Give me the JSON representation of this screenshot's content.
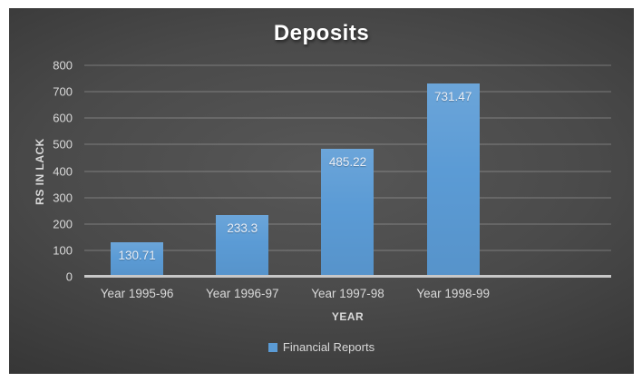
{
  "chart_data": {
    "type": "bar",
    "title": "Deposits",
    "categories": [
      "Year 1995-96",
      "Year 1996-97",
      "Year 1997-98",
      "Year 1998-99"
    ],
    "values": [
      130.71,
      233.3,
      485.22,
      731.47
    ],
    "value_labels": [
      "130.71",
      "233.3",
      "485.22",
      "731.47"
    ],
    "series": [
      {
        "name": "Financial Reports",
        "values": [
          130.71,
          233.3,
          485.22,
          731.47
        ]
      }
    ],
    "xlabel": "YEAR",
    "ylabel": "RS IN LACK",
    "ylim": [
      0,
      800
    ],
    "y_ticks": [
      0,
      100,
      200,
      300,
      400,
      500,
      600,
      700,
      800
    ],
    "grid": true,
    "legend_position": "bottom",
    "legend_label": "Financial Reports",
    "colors": {
      "bar": "#5b9bd5",
      "text": "#d9d9d9",
      "title_text": "#ffffff",
      "background_center": "#565656",
      "background_edge": "#282828",
      "axis_line": "#c8c8c8",
      "frame": "#ffffff"
    }
  }
}
